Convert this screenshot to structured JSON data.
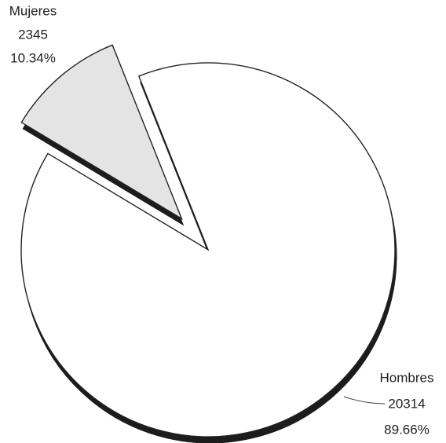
{
  "chart_data": {
    "type": "pie",
    "categories": [
      "Mujeres",
      "Hombres"
    ],
    "values": [
      2345,
      20314
    ],
    "percents": [
      10.34,
      89.66
    ],
    "percent_labels": [
      "10.34%",
      "89.66%"
    ],
    "colors": [
      "#e4e4e4",
      "#ffffff"
    ],
    "exploded": [
      true,
      false
    ]
  }
}
